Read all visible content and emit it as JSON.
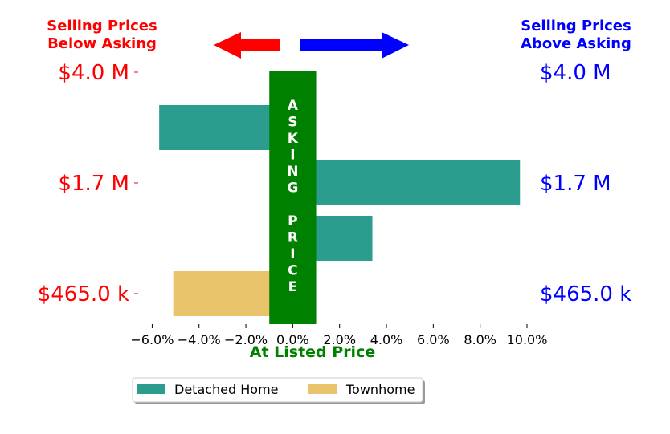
{
  "chart_data": {
    "type": "bar",
    "orientation": "horizontal",
    "x_tick_labels": [
      "−6.0%",
      "−4.0%",
      "−2.0%",
      "0.0%",
      "2.0%",
      "4.0%",
      "6.0%",
      "8.0%",
      "10.0%"
    ],
    "x_ticks": [
      -6,
      -4,
      -2,
      0,
      2,
      4,
      6,
      8,
      10
    ],
    "xlim": [
      -6.7,
      10.0
    ],
    "xlabel": "At Listed Price",
    "y_labels_left": [
      "$4.0 M",
      "$1.7 M",
      "$465.0 k"
    ],
    "y_labels_right": [
      "$4.0 M",
      "$1.7 M",
      "$465.0 k"
    ],
    "bars": [
      {
        "series": "Detached Home",
        "value": -5.7,
        "slot": 0.5
      },
      {
        "series": "Detached Home",
        "value": 9.7,
        "slot": 1.0
      },
      {
        "series": "Detached Home",
        "value": 3.4,
        "slot": 1.5
      },
      {
        "series": "Townhome",
        "value": -5.1,
        "slot": 2.0
      }
    ],
    "series": [
      {
        "name": "Detached Home",
        "color": "#2a9d8f"
      },
      {
        "name": "Townhome",
        "color": "#e9c46a"
      }
    ],
    "left_title": [
      "Selling Prices",
      "Below Asking"
    ],
    "right_title": [
      "Selling Prices",
      "Above Asking"
    ],
    "center_label_top": [
      "A",
      "S",
      "K",
      "I",
      "N",
      "G"
    ],
    "center_label_bottom": [
      "P",
      "R",
      "I",
      "C",
      "E"
    ],
    "center_band": [
      -1,
      1
    ],
    "legend": {
      "placement": "bottom-center",
      "entries": [
        "Detached Home",
        "Townhome"
      ]
    },
    "colors": {
      "below": "#ff0000",
      "above": "#0000ff",
      "asking": "#008000"
    },
    "grid": false
  }
}
